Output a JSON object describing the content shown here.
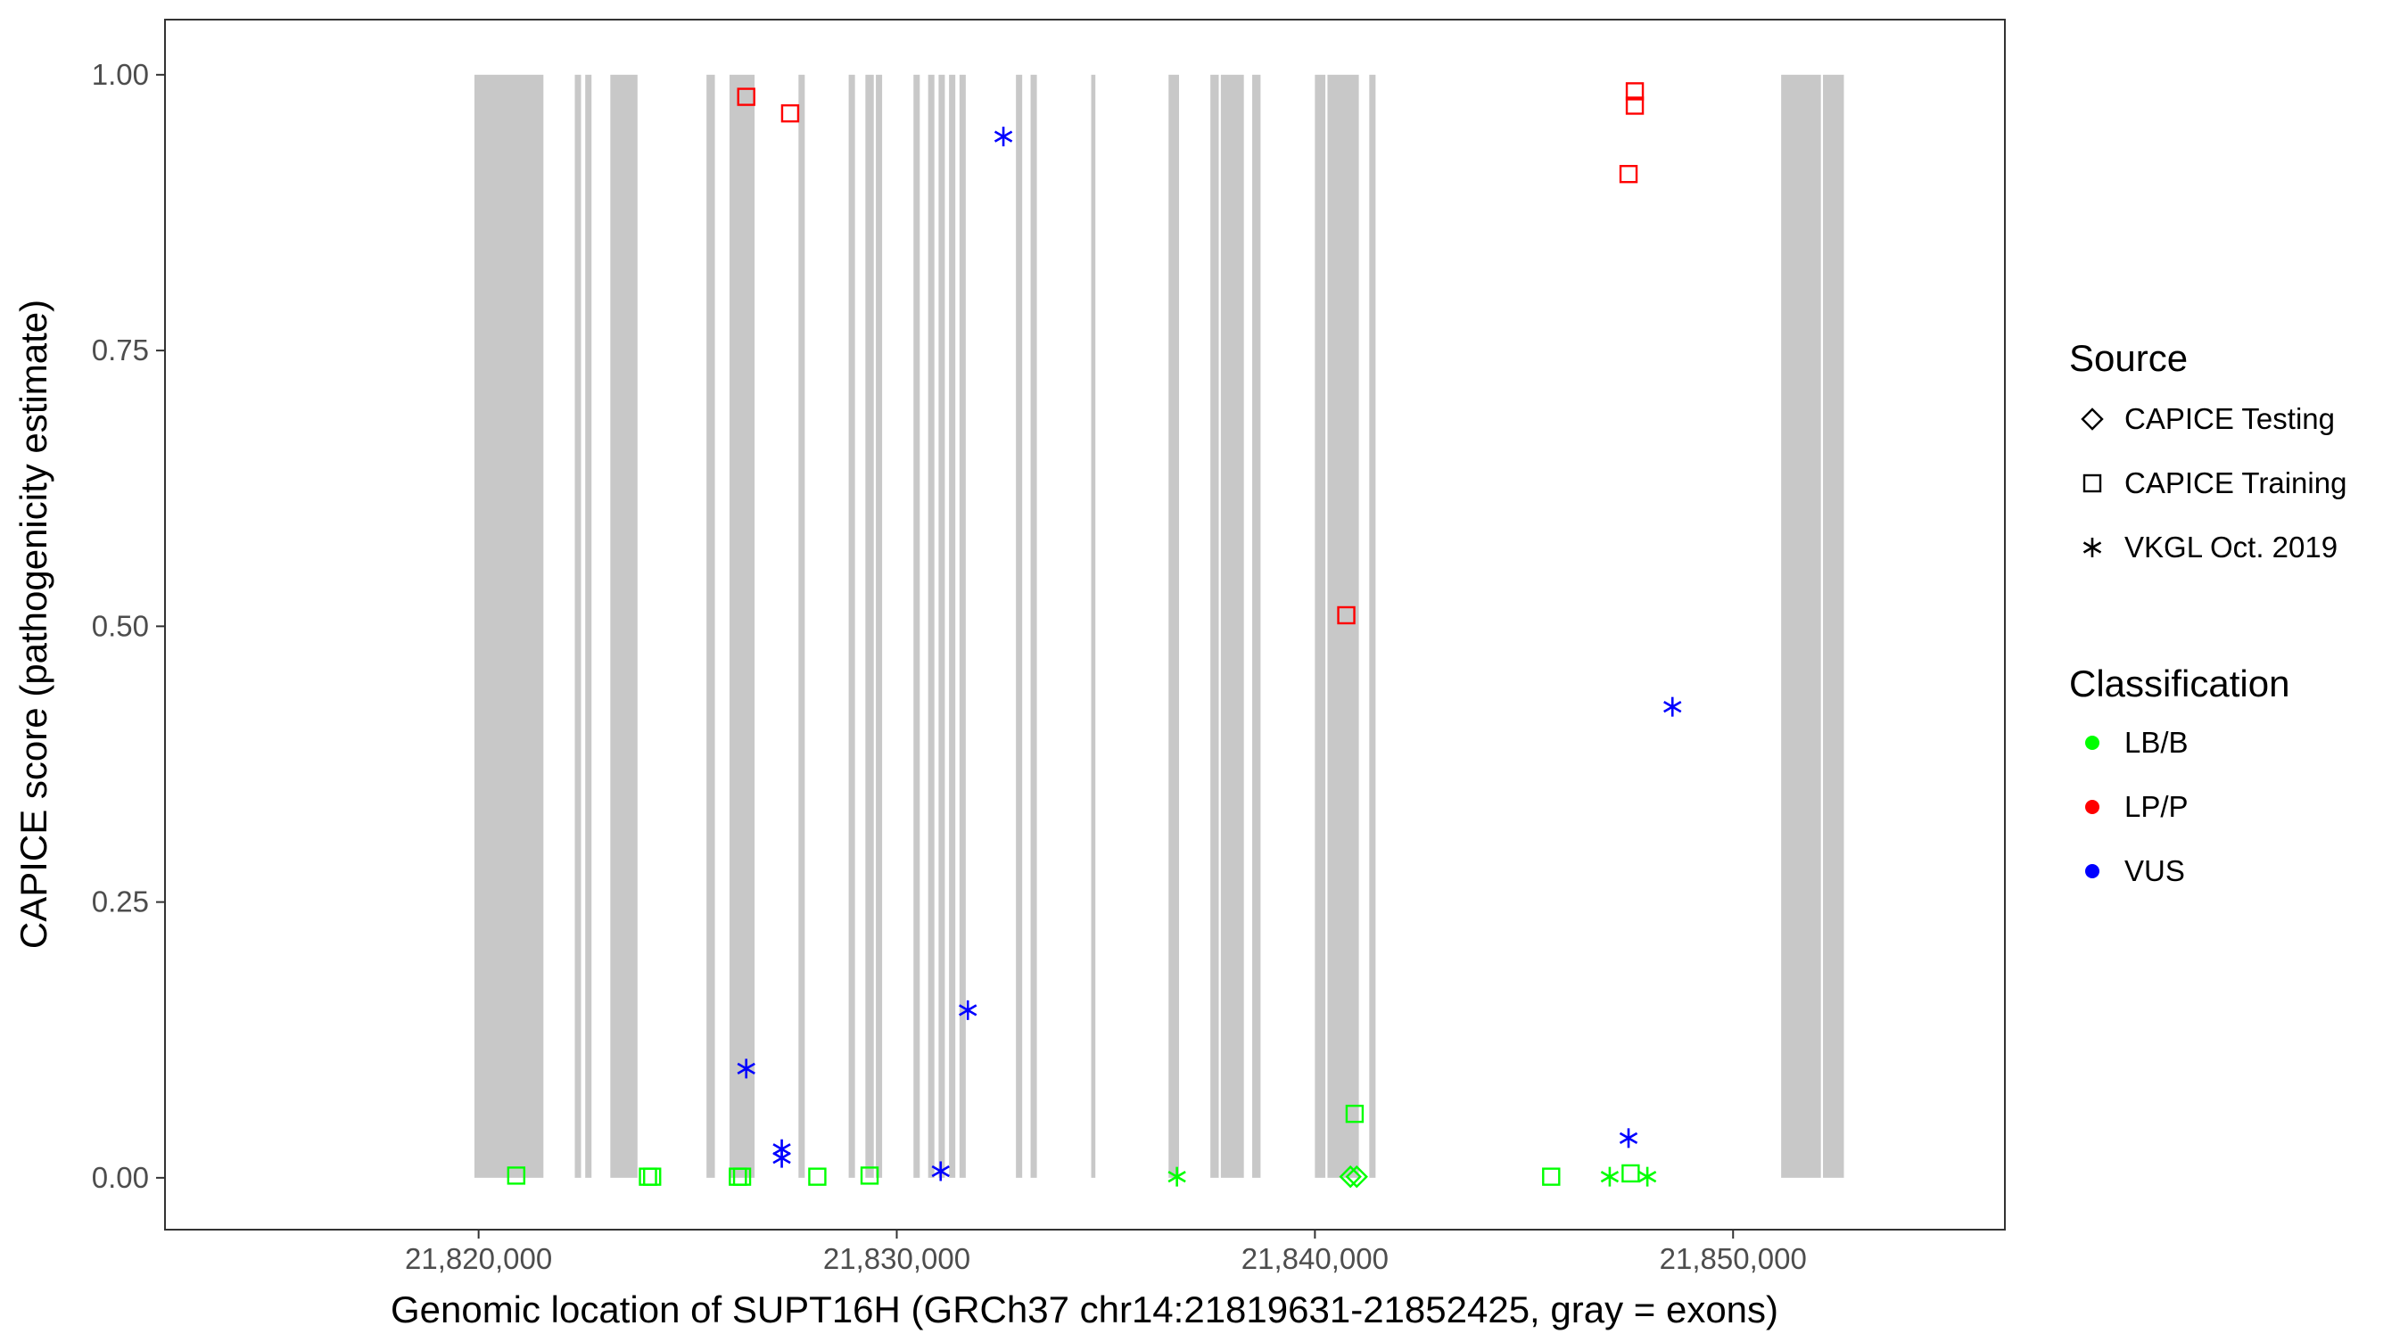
{
  "chart_data": {
    "type": "scatter",
    "title": "",
    "xlabel": "Genomic location of SUPT16H (GRCh37 chr14:21819631-21852425, gray = exons)",
    "ylabel": "CAPICE score (pathogenicity estimate)",
    "xlim": [
      21812500,
      21856500
    ],
    "ylim": [
      -0.047,
      1.05
    ],
    "x_ticks": [
      21820000,
      21830000,
      21840000,
      21850000
    ],
    "x_tick_labels": [
      "21,820,000",
      "21,830,000",
      "21,840,000",
      "21,850,000"
    ],
    "y_ticks": [
      0,
      0.25,
      0.5,
      0.75,
      1
    ],
    "y_tick_labels": [
      "0.00",
      "0.25",
      "0.50",
      "0.75",
      "1.00"
    ],
    "grid": false,
    "legend_placement": "right",
    "exon_color": "#c8c8c8",
    "exon_y_range": [
      0,
      1
    ],
    "exons": [
      [
        21819900,
        21821550
      ],
      [
        21822300,
        21822450
      ],
      [
        21822550,
        21822700
      ],
      [
        21823150,
        21823800
      ],
      [
        21825450,
        21825650
      ],
      [
        21826000,
        21826600
      ],
      [
        21827650,
        21827800
      ],
      [
        21828850,
        21829000
      ],
      [
        21829250,
        21829450
      ],
      [
        21829500,
        21829650
      ],
      [
        21830400,
        21830550
      ],
      [
        21830750,
        21830900
      ],
      [
        21831000,
        21831150
      ],
      [
        21831250,
        21831400
      ],
      [
        21831500,
        21831650
      ],
      [
        21832850,
        21833000
      ],
      [
        21833200,
        21833350
      ],
      [
        21834650,
        21834750
      ],
      [
        21836500,
        21836750
      ],
      [
        21837500,
        21837700
      ],
      [
        21837750,
        21838300
      ],
      [
        21838500,
        21838700
      ],
      [
        21840000,
        21840250
      ],
      [
        21840300,
        21841050
      ],
      [
        21841300,
        21841450
      ],
      [
        21851150,
        21852100
      ],
      [
        21852150,
        21852650
      ]
    ],
    "legend": {
      "source_title": "Source",
      "source_items": [
        {
          "label": "CAPICE Testing",
          "shape": "diamond"
        },
        {
          "label": "CAPICE Training",
          "shape": "square"
        },
        {
          "label": "VKGL Oct. 2019",
          "shape": "asterisk"
        }
      ],
      "class_title": "Classification",
      "class_items": [
        {
          "label": "LB/B",
          "color": "#00ff00"
        },
        {
          "label": "LP/P",
          "color": "#ff0000"
        },
        {
          "label": "VUS",
          "color": "#0000ff"
        }
      ]
    },
    "series": [
      {
        "source": "CAPICE Training",
        "classification": "LP/P",
        "points": [
          [
            21826400,
            0.98
          ],
          [
            21827450,
            0.965
          ],
          [
            21840750,
            0.51
          ],
          [
            21847500,
            0.91
          ],
          [
            21847650,
            0.985
          ],
          [
            21847650,
            0.972
          ]
        ]
      },
      {
        "source": "CAPICE Training",
        "classification": "LB/B",
        "points": [
          [
            21820900,
            0.002
          ],
          [
            21824050,
            0.001
          ],
          [
            21824150,
            0.001
          ],
          [
            21826200,
            0.001
          ],
          [
            21826300,
            0.001
          ],
          [
            21828100,
            0.001
          ],
          [
            21829350,
            0.002
          ],
          [
            21840950,
            0.058
          ],
          [
            21845650,
            0.001
          ],
          [
            21847550,
            0.004
          ]
        ]
      },
      {
        "source": "CAPICE Testing",
        "classification": "LB/B",
        "points": [
          [
            21840850,
            0.001
          ],
          [
            21841000,
            0.001
          ]
        ]
      },
      {
        "source": "VKGL Oct. 2019",
        "classification": "VUS",
        "points": [
          [
            21826400,
            0.099
          ],
          [
            21827250,
            0.026
          ],
          [
            21827250,
            0.018
          ],
          [
            21831050,
            0.006
          ],
          [
            21831700,
            0.152
          ],
          [
            21832550,
            0.944
          ],
          [
            21847500,
            0.036
          ],
          [
            21848550,
            0.427
          ]
        ]
      },
      {
        "source": "VKGL Oct. 2019",
        "classification": "LB/B",
        "points": [
          [
            21836700,
            0.001
          ],
          [
            21847050,
            0.001
          ],
          [
            21847950,
            0.001
          ]
        ]
      }
    ]
  }
}
